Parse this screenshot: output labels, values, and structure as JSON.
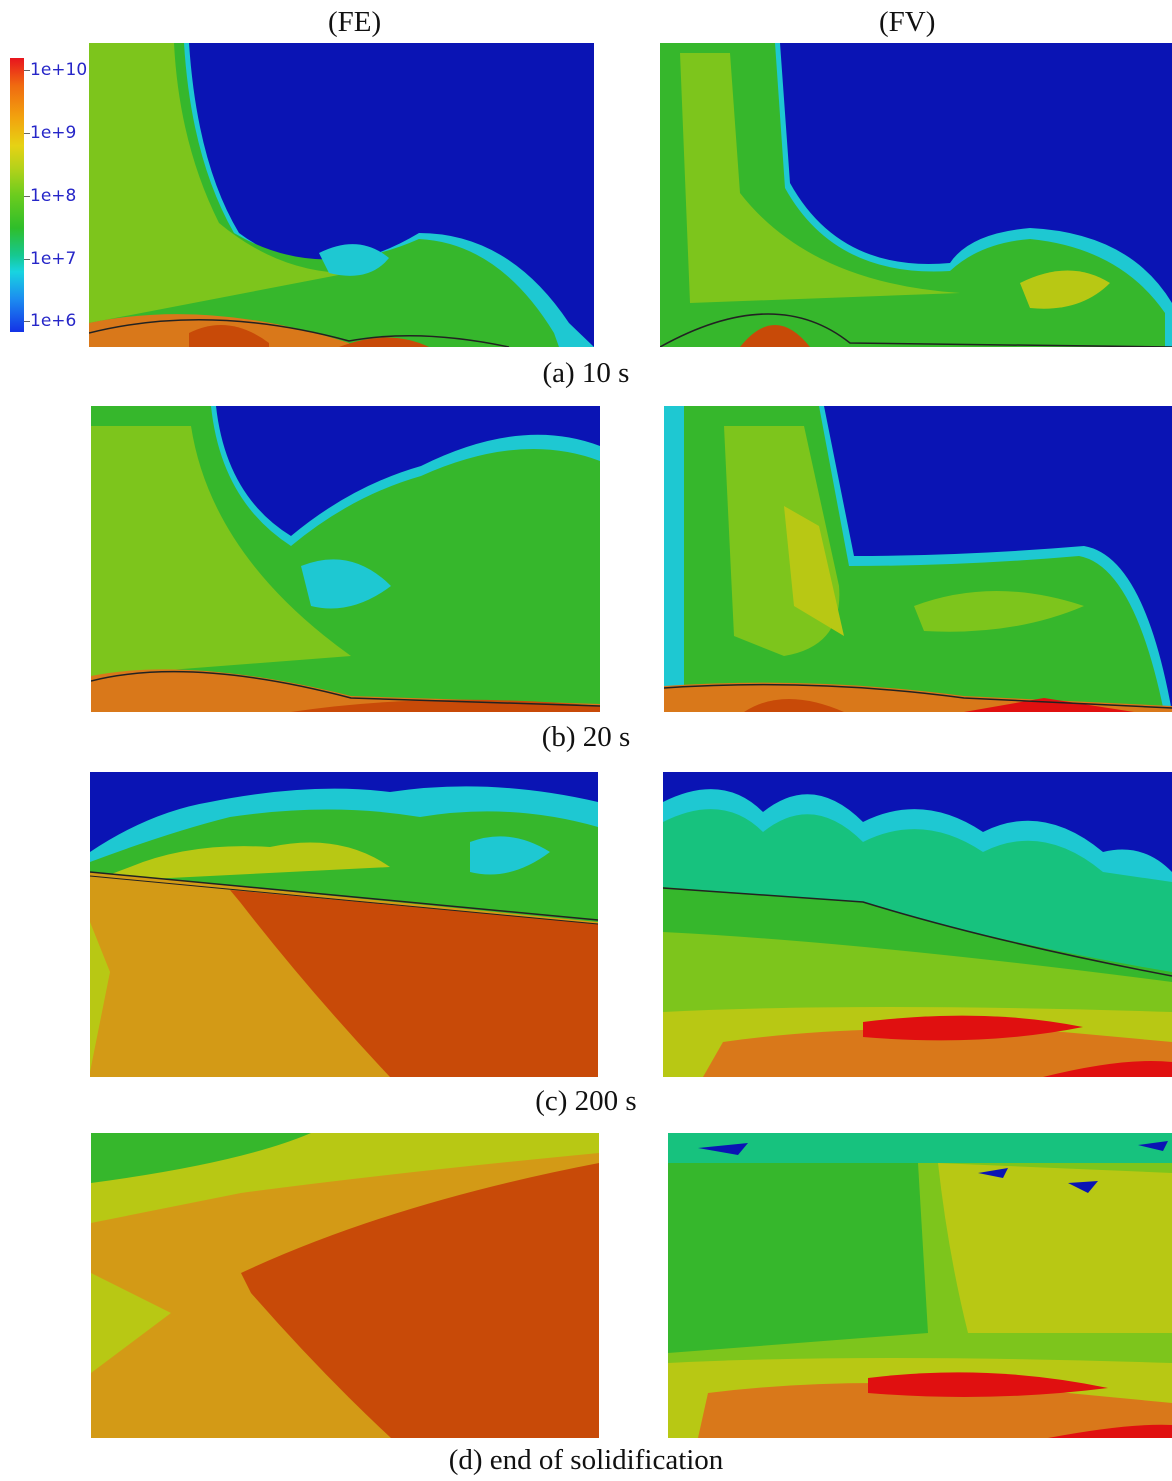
{
  "columns": {
    "left": "(FE)",
    "right": "(FV)"
  },
  "legend": {
    "labels": [
      "1e+10",
      "1e+9",
      "1e+8",
      "1e+7",
      "1e+6"
    ]
  },
  "captions": [
    "(a) 10 s",
    "(b) 20 s",
    "(c) 200 s",
    "(d) end of solidification"
  ],
  "colors": {
    "deep_blue": "#0a14b4",
    "cyan": "#1ec8d2",
    "teal": "#17c27e",
    "green": "#36b72c",
    "light_green": "#7dc51c",
    "yellow_green": "#b8c814",
    "orange_yellow": "#d39a16",
    "orange": "#d9781a",
    "red_orange": "#c84a08",
    "red": "#e01010"
  }
}
